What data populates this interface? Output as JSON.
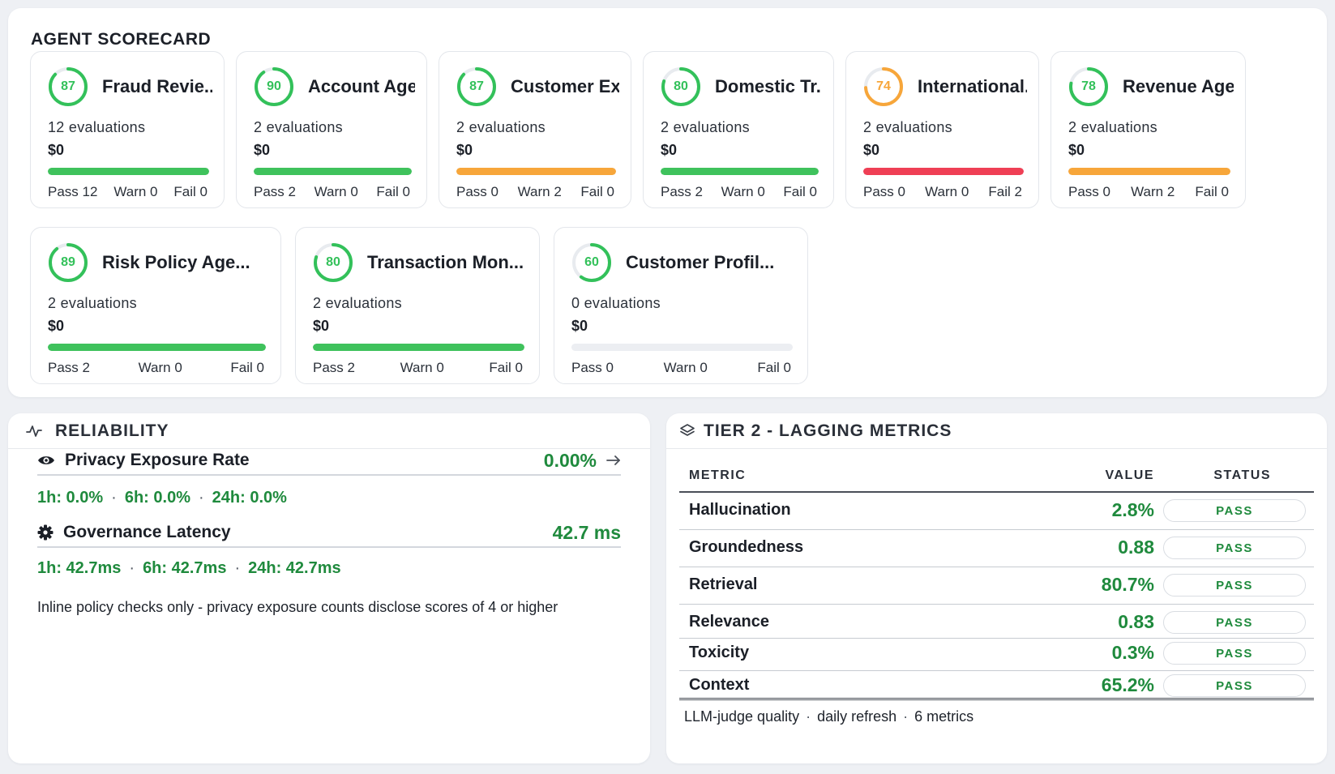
{
  "scorecard": {
    "title": "AGENT SCORECARD",
    "agents": [
      {
        "name": "Fraud Revie...",
        "score": "87",
        "evaluations": "12 evaluations",
        "cost": "$0",
        "pass": "Pass 12",
        "warn": "Warn 0",
        "fail": "Fail 0",
        "score_color": "#33c15a",
        "bar_color": "#3fc25c",
        "bar_fill": 1.0
      },
      {
        "name": "Account Agent",
        "score": "90",
        "evaluations": "2 evaluations",
        "cost": "$0",
        "pass": "Pass 2",
        "warn": "Warn 0",
        "fail": "Fail 0",
        "score_color": "#33c15a",
        "bar_color": "#3fc25c",
        "bar_fill": 1.0
      },
      {
        "name": "Customer Ex...",
        "score": "87",
        "evaluations": "2 evaluations",
        "cost": "$0",
        "pass": "Pass 0",
        "warn": "Warn 2",
        "fail": "Fail 0",
        "score_color": "#33c15a",
        "bar_color": "#f7a63a",
        "bar_fill": 1.0
      },
      {
        "name": "Domestic Tr...",
        "score": "80",
        "evaluations": "2 evaluations",
        "cost": "$0",
        "pass": "Pass 2",
        "warn": "Warn 0",
        "fail": "Fail 0",
        "score_color": "#33c15a",
        "bar_color": "#3fc25c",
        "bar_fill": 1.0
      },
      {
        "name": "International...",
        "score": "74",
        "evaluations": "2 evaluations",
        "cost": "$0",
        "pass": "Pass 0",
        "warn": "Warn 0",
        "fail": "Fail 2",
        "score_color": "#f7a63a",
        "bar_color": "#ef3f55",
        "bar_fill": 1.0
      },
      {
        "name": "Revenue Age...",
        "score": "78",
        "evaluations": "2 evaluations",
        "cost": "$0",
        "pass": "Pass 0",
        "warn": "Warn 2",
        "fail": "Fail 0",
        "score_color": "#33c15a",
        "bar_color": "#f7a63a",
        "bar_fill": 1.0
      },
      {
        "name": "Risk Policy Age...",
        "score": "89",
        "evaluations": "2 evaluations",
        "cost": "$0",
        "pass": "Pass 2",
        "warn": "Warn 0",
        "fail": "Fail 0",
        "score_color": "#33c15a",
        "bar_color": "#3fc25c",
        "bar_fill": 1.0
      },
      {
        "name": "Transaction Mon...",
        "score": "80",
        "evaluations": "2 evaluations",
        "cost": "$0",
        "pass": "Pass 2",
        "warn": "Warn 0",
        "fail": "Fail 0",
        "score_color": "#33c15a",
        "bar_color": "#3fc25c",
        "bar_fill": 1.0
      },
      {
        "name": "Customer Profil...",
        "score": "60",
        "evaluations": "0 evaluations",
        "cost": "$0",
        "pass": "Pass 0",
        "warn": "Warn 0",
        "fail": "Fail 0",
        "score_color": "#33c15a",
        "bar_color": "#3fc25c",
        "bar_fill": 0.0
      }
    ]
  },
  "reliability": {
    "title": "RELIABILITY",
    "header_icon": "activity-icon",
    "privacy": {
      "icon": "eye-icon",
      "label": "Privacy Exposure Rate",
      "value": "0.00%",
      "link_icon": "arrow-right-icon",
      "w1h": "1h: 0.0%",
      "w6h": "6h: 0.0%",
      "w24h": "24h: 0.0%"
    },
    "latency": {
      "icon": "gear-icon",
      "label": "Governance Latency",
      "value": "42.7 ms",
      "w1h": "1h: 42.7ms",
      "w6h": "6h: 42.7ms",
      "w24h": "24h: 42.7ms"
    },
    "note": "Inline policy checks only - privacy exposure counts disclose scores of 4 or higher"
  },
  "tier2": {
    "title": "TIER 2 - LAGGING METRICS",
    "header_icon": "layers-icon",
    "columns": {
      "metric": "METRIC",
      "value": "VALUE",
      "status": "STATUS"
    },
    "rows": [
      {
        "metric": "Hallucination",
        "value": "2.8%",
        "status": "PASS"
      },
      {
        "metric": "Groundedness",
        "value": "0.88",
        "status": "PASS"
      },
      {
        "metric": "Retrieval",
        "value": "80.7%",
        "status": "PASS"
      },
      {
        "metric": "Relevance",
        "value": "0.83",
        "status": "PASS"
      },
      {
        "metric": "Toxicity",
        "value": "0.3%",
        "status": "PASS"
      },
      {
        "metric": "Context",
        "value": "65.2%",
        "status": "PASS"
      }
    ],
    "footer": {
      "part1": "LLM-judge quality",
      "part2": "daily refresh",
      "part3": "6 metrics"
    }
  },
  "colors": {
    "pass_green": "#1f8a3d",
    "ring_track": "#e8ebef"
  }
}
